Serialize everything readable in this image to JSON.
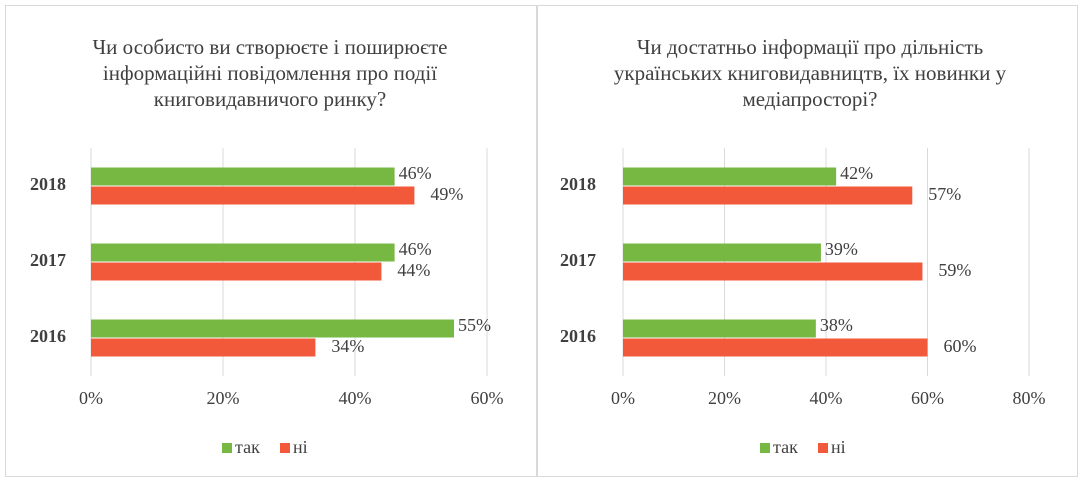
{
  "chart_data": [
    {
      "type": "bar",
      "orientation": "horizontal",
      "title": "Чи особисто ви створюєте і поширюєте інформаційні повідомлення про події книговидавничого ринку?",
      "categories": [
        "2018",
        "2017",
        "2016"
      ],
      "series": [
        {
          "name": "так",
          "color": "#77b843",
          "values": [
            46,
            46,
            55
          ],
          "value_labels": [
            "46%",
            "46%",
            "55%"
          ]
        },
        {
          "name": "ні",
          "color": "#f2583a",
          "values": [
            49,
            44,
            34
          ],
          "value_labels": [
            "49%",
            "44%",
            "34%"
          ]
        }
      ],
      "xlim": [
        0,
        60
      ],
      "xticks": [
        {
          "value": 0,
          "label": "0%"
        },
        {
          "value": 20,
          "label": "20%"
        },
        {
          "value": 40,
          "label": "40%"
        },
        {
          "value": 60,
          "label": "60%"
        }
      ],
      "grid": true,
      "legend": "bottom"
    },
    {
      "type": "bar",
      "orientation": "horizontal",
      "title": "Чи достатньо інформації про дільність українських книговидавництв, їх новинки у медіапросторі?",
      "categories": [
        "2018",
        "2017",
        "2016"
      ],
      "series": [
        {
          "name": "так",
          "color": "#77b843",
          "values": [
            42,
            39,
            38
          ],
          "value_labels": [
            "42%",
            "39%",
            "38%"
          ]
        },
        {
          "name": "ні",
          "color": "#f2583a",
          "values": [
            57,
            59,
            60
          ],
          "value_labels": [
            "57%",
            "59%",
            "60%"
          ]
        }
      ],
      "xlim": [
        0,
        80
      ],
      "xticks": [
        {
          "value": 0,
          "label": "0%"
        },
        {
          "value": 20,
          "label": "20%"
        },
        {
          "value": 40,
          "label": "40%"
        },
        {
          "value": 60,
          "label": "60%"
        },
        {
          "value": 80,
          "label": "80%"
        }
      ],
      "grid": true,
      "legend": "bottom"
    }
  ]
}
